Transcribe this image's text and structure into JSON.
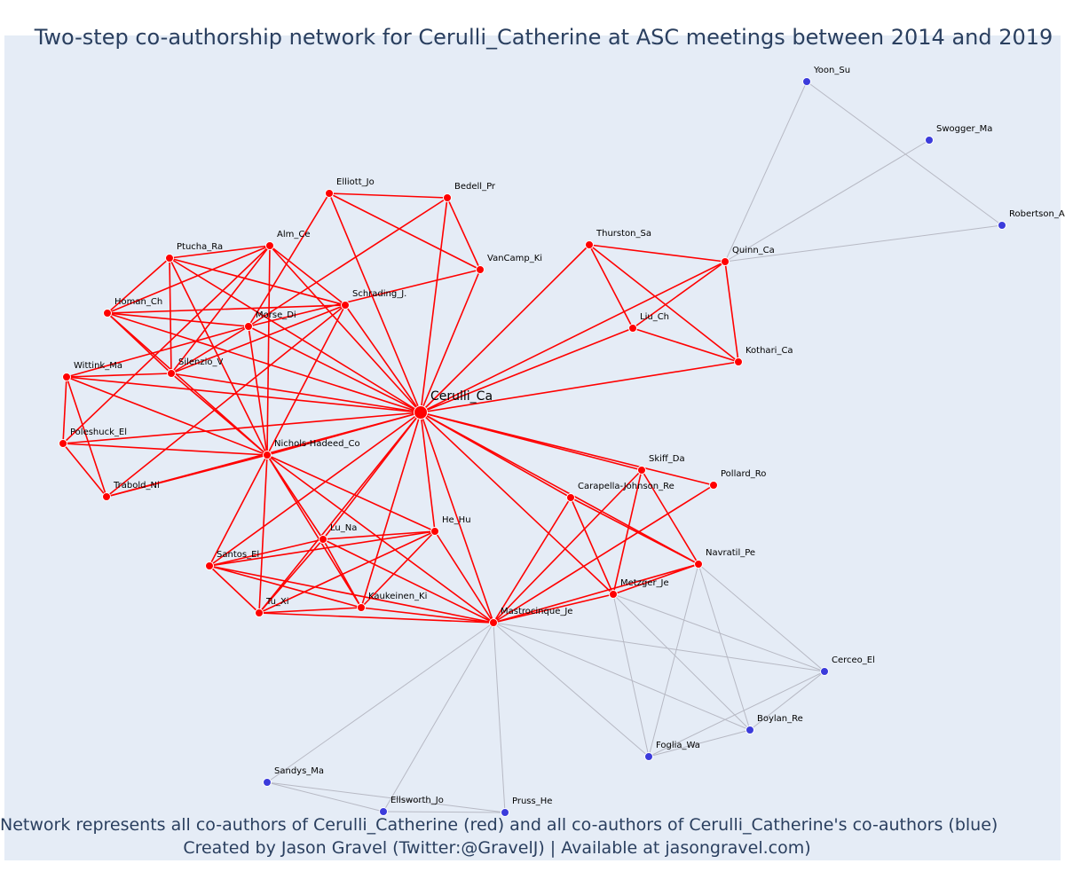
{
  "title": "Two-step co-authorship network for Cerulli_Catherine at ASC meetings between 2014 and 2019",
  "captions": [
    "Network represents all co-authors of Cerulli_Catherine (red) and all co-authors of Cerulli_Catherine's co-authors (blue)",
    "Created by Jason Gravel (Twitter:@GravelJ) | Available at jasongravel.com)"
  ],
  "colors": {
    "background": "#e5ecf6",
    "first_degree": "#ff0000",
    "second_degree": "#3b3bdb",
    "second_degree_edge": "#b7b9c4",
    "text": "#2a3f5f"
  },
  "nodes": [
    {
      "id": "Cerulli_Ca",
      "degree": 0
    },
    {
      "id": "Elliott_Jo",
      "degree": 1
    },
    {
      "id": "Bedell_Pr",
      "degree": 1
    },
    {
      "id": "VanCamp_Ki",
      "degree": 1
    },
    {
      "id": "Ptucha_Ra",
      "degree": 1
    },
    {
      "id": "Alm_Ce",
      "degree": 1
    },
    {
      "id": "Schrading_J",
      "label": "Schrading_J.",
      "degree": 1
    },
    {
      "id": "Homan_Ch",
      "degree": 1
    },
    {
      "id": "Morse_Di",
      "degree": 1
    },
    {
      "id": "Wittink_Ma",
      "degree": 1
    },
    {
      "id": "Silenzio_V",
      "degree": 1
    },
    {
      "id": "Poleshuck_El",
      "degree": 1
    },
    {
      "id": "Nichols-Hadeed_Co",
      "degree": 1
    },
    {
      "id": "Trabold_Ni",
      "degree": 1
    },
    {
      "id": "Thurston_Sa",
      "degree": 1
    },
    {
      "id": "Quinn_Ca",
      "degree": 1
    },
    {
      "id": "Liu_Ch",
      "degree": 1
    },
    {
      "id": "Kothari_Ca",
      "degree": 1
    },
    {
      "id": "Skiff_Da",
      "degree": 1
    },
    {
      "id": "Pollard_Ro",
      "degree": 1
    },
    {
      "id": "Carapella-Johnson_Re",
      "degree": 1
    },
    {
      "id": "He_Hu",
      "degree": 1
    },
    {
      "id": "Lu_Na",
      "degree": 1
    },
    {
      "id": "Santos_El",
      "degree": 1
    },
    {
      "id": "Navratil_Pe",
      "degree": 1
    },
    {
      "id": "Metzger_Je",
      "degree": 1
    },
    {
      "id": "Tu_Xi",
      "degree": 1
    },
    {
      "id": "Kaukeinen_Ki",
      "degree": 1
    },
    {
      "id": "Mastrocinque_Je",
      "degree": 1
    },
    {
      "id": "Yoon_Su",
      "degree": 2
    },
    {
      "id": "Swogger_Ma",
      "degree": 2
    },
    {
      "id": "Robertson_A",
      "degree": 2
    },
    {
      "id": "Cerceo_El",
      "degree": 2
    },
    {
      "id": "Boylan_Re",
      "degree": 2
    },
    {
      "id": "Foglia_Wa",
      "degree": 2
    },
    {
      "id": "Sandys_Ma",
      "degree": 2
    },
    {
      "id": "Ellsworth_Jo",
      "degree": 2
    },
    {
      "id": "Pruss_He",
      "degree": 2
    }
  ],
  "edges": [
    [
      "Cerulli_Ca",
      "Elliott_Jo"
    ],
    [
      "Cerulli_Ca",
      "Bedell_Pr"
    ],
    [
      "Cerulli_Ca",
      "VanCamp_Ki"
    ],
    [
      "Cerulli_Ca",
      "Ptucha_Ra"
    ],
    [
      "Cerulli_Ca",
      "Alm_Ce"
    ],
    [
      "Cerulli_Ca",
      "Schrading_J"
    ],
    [
      "Cerulli_Ca",
      "Homan_Ch"
    ],
    [
      "Cerulli_Ca",
      "Morse_Di"
    ],
    [
      "Cerulli_Ca",
      "Wittink_Ma"
    ],
    [
      "Cerulli_Ca",
      "Silenzio_V"
    ],
    [
      "Cerulli_Ca",
      "Poleshuck_El"
    ],
    [
      "Cerulli_Ca",
      "Nichols-Hadeed_Co"
    ],
    [
      "Cerulli_Ca",
      "Trabold_Ni"
    ],
    [
      "Cerulli_Ca",
      "Thurston_Sa"
    ],
    [
      "Cerulli_Ca",
      "Quinn_Ca"
    ],
    [
      "Cerulli_Ca",
      "Liu_Ch"
    ],
    [
      "Cerulli_Ca",
      "Kothari_Ca"
    ],
    [
      "Cerulli_Ca",
      "Skiff_Da"
    ],
    [
      "Cerulli_Ca",
      "Pollard_Ro"
    ],
    [
      "Cerulli_Ca",
      "Carapella-Johnson_Re"
    ],
    [
      "Cerulli_Ca",
      "He_Hu"
    ],
    [
      "Cerulli_Ca",
      "Lu_Na"
    ],
    [
      "Cerulli_Ca",
      "Santos_El"
    ],
    [
      "Cerulli_Ca",
      "Navratil_Pe"
    ],
    [
      "Cerulli_Ca",
      "Metzger_Je"
    ],
    [
      "Cerulli_Ca",
      "Tu_Xi"
    ],
    [
      "Cerulli_Ca",
      "Kaukeinen_Ki"
    ],
    [
      "Cerulli_Ca",
      "Mastrocinque_Je"
    ],
    [
      "Elliott_Jo",
      "Bedell_Pr"
    ],
    [
      "Elliott_Jo",
      "VanCamp_Ki"
    ],
    [
      "Elliott_Jo",
      "Morse_Di"
    ],
    [
      "Bedell_Pr",
      "VanCamp_Ki"
    ],
    [
      "Bedell_Pr",
      "Morse_Di"
    ],
    [
      "VanCamp_Ki",
      "Morse_Di"
    ],
    [
      "Ptucha_Ra",
      "Alm_Ce"
    ],
    [
      "Ptucha_Ra",
      "Schrading_J"
    ],
    [
      "Ptucha_Ra",
      "Homan_Ch"
    ],
    [
      "Ptucha_Ra",
      "Silenzio_V"
    ],
    [
      "Ptucha_Ra",
      "Nichols-Hadeed_Co"
    ],
    [
      "Alm_Ce",
      "Schrading_J"
    ],
    [
      "Alm_Ce",
      "Homan_Ch"
    ],
    [
      "Alm_Ce",
      "Silenzio_V"
    ],
    [
      "Alm_Ce",
      "Nichols-Hadeed_Co"
    ],
    [
      "Alm_Ce",
      "Poleshuck_El"
    ],
    [
      "Schrading_J",
      "Homan_Ch"
    ],
    [
      "Schrading_J",
      "Silenzio_V"
    ],
    [
      "Schrading_J",
      "Nichols-Hadeed_Co"
    ],
    [
      "Schrading_J",
      "Trabold_Ni"
    ],
    [
      "Homan_Ch",
      "Silenzio_V"
    ],
    [
      "Homan_Ch",
      "Nichols-Hadeed_Co"
    ],
    [
      "Homan_Ch",
      "Morse_Di"
    ],
    [
      "Morse_Di",
      "Silenzio_V"
    ],
    [
      "Morse_Di",
      "Nichols-Hadeed_Co"
    ],
    [
      "Morse_Di",
      "Wittink_Ma"
    ],
    [
      "Wittink_Ma",
      "Silenzio_V"
    ],
    [
      "Wittink_Ma",
      "Poleshuck_El"
    ],
    [
      "Wittink_Ma",
      "Trabold_Ni"
    ],
    [
      "Wittink_Ma",
      "Nichols-Hadeed_Co"
    ],
    [
      "Silenzio_V",
      "Nichols-Hadeed_Co"
    ],
    [
      "Poleshuck_El",
      "Nichols-Hadeed_Co"
    ],
    [
      "Poleshuck_El",
      "Trabold_Ni"
    ],
    [
      "Trabold_Ni",
      "Nichols-Hadeed_Co"
    ],
    [
      "Nichols-Hadeed_Co",
      "Lu_Na"
    ],
    [
      "Nichols-Hadeed_Co",
      "Santos_El"
    ],
    [
      "Nichols-Hadeed_Co",
      "Tu_Xi"
    ],
    [
      "Nichols-Hadeed_Co",
      "Kaukeinen_Ki"
    ],
    [
      "Nichols-Hadeed_Co",
      "He_Hu"
    ],
    [
      "Nichols-Hadeed_Co",
      "Mastrocinque_Je"
    ],
    [
      "Thurston_Sa",
      "Quinn_Ca"
    ],
    [
      "Thurston_Sa",
      "Liu_Ch"
    ],
    [
      "Thurston_Sa",
      "Kothari_Ca"
    ],
    [
      "Quinn_Ca",
      "Liu_Ch"
    ],
    [
      "Quinn_Ca",
      "Kothari_Ca"
    ],
    [
      "Liu_Ch",
      "Kothari_Ca"
    ],
    [
      "Skiff_Da",
      "Navratil_Pe"
    ],
    [
      "Skiff_Da",
      "Metzger_Je"
    ],
    [
      "Skiff_Da",
      "Mastrocinque_Je"
    ],
    [
      "Pollard_Ro",
      "Mastrocinque_Je"
    ],
    [
      "Carapella-Johnson_Re",
      "Metzger_Je"
    ],
    [
      "Carapella-Johnson_Re",
      "Mastrocinque_Je"
    ],
    [
      "Carapella-Johnson_Re",
      "Navratil_Pe"
    ],
    [
      "Navratil_Pe",
      "Metzger_Je"
    ],
    [
      "Navratil_Pe",
      "Mastrocinque_Je"
    ],
    [
      "Metzger_Je",
      "Mastrocinque_Je"
    ],
    [
      "He_Hu",
      "Lu_Na"
    ],
    [
      "He_Hu",
      "Santos_El"
    ],
    [
      "He_Hu",
      "Tu_Xi"
    ],
    [
      "He_Hu",
      "Kaukeinen_Ki"
    ],
    [
      "He_Hu",
      "Mastrocinque_Je"
    ],
    [
      "Lu_Na",
      "Santos_El"
    ],
    [
      "Lu_Na",
      "Tu_Xi"
    ],
    [
      "Lu_Na",
      "Kaukeinen_Ki"
    ],
    [
      "Lu_Na",
      "Mastrocinque_Je"
    ],
    [
      "Santos_El",
      "Tu_Xi"
    ],
    [
      "Santos_El",
      "Kaukeinen_Ki"
    ],
    [
      "Santos_El",
      "Mastrocinque_Je"
    ],
    [
      "Tu_Xi",
      "Kaukeinen_Ki"
    ],
    [
      "Tu_Xi",
      "Mastrocinque_Je"
    ],
    [
      "Kaukeinen_Ki",
      "Mastrocinque_Je"
    ],
    [
      "Yoon_Su",
      "Quinn_Ca"
    ],
    [
      "Yoon_Su",
      "Robertson_A"
    ],
    [
      "Swogger_Ma",
      "Quinn_Ca"
    ],
    [
      "Robertson_A",
      "Quinn_Ca"
    ],
    [
      "Navratil_Pe",
      "Cerceo_El"
    ],
    [
      "Navratil_Pe",
      "Boylan_Re"
    ],
    [
      "Navratil_Pe",
      "Foglia_Wa"
    ],
    [
      "Metzger_Je",
      "Cerceo_El"
    ],
    [
      "Metzger_Je",
      "Boylan_Re"
    ],
    [
      "Metzger_Je",
      "Foglia_Wa"
    ],
    [
      "Mastrocinque_Je",
      "Cerceo_El"
    ],
    [
      "Mastrocinque_Je",
      "Boylan_Re"
    ],
    [
      "Mastrocinque_Je",
      "Foglia_Wa"
    ],
    [
      "Mastrocinque_Je",
      "Sandys_Ma"
    ],
    [
      "Mastrocinque_Je",
      "Ellsworth_Jo"
    ],
    [
      "Mastrocinque_Je",
      "Pruss_He"
    ],
    [
      "Cerceo_El",
      "Boylan_Re"
    ],
    [
      "Cerceo_El",
      "Foglia_Wa"
    ],
    [
      "Boylan_Re",
      "Foglia_Wa"
    ],
    [
      "Sandys_Ma",
      "Ellsworth_Jo"
    ],
    [
      "Sandys_Ma",
      "Pruss_He"
    ],
    [
      "Ellsworth_Jo",
      "Pruss_He"
    ]
  ]
}
